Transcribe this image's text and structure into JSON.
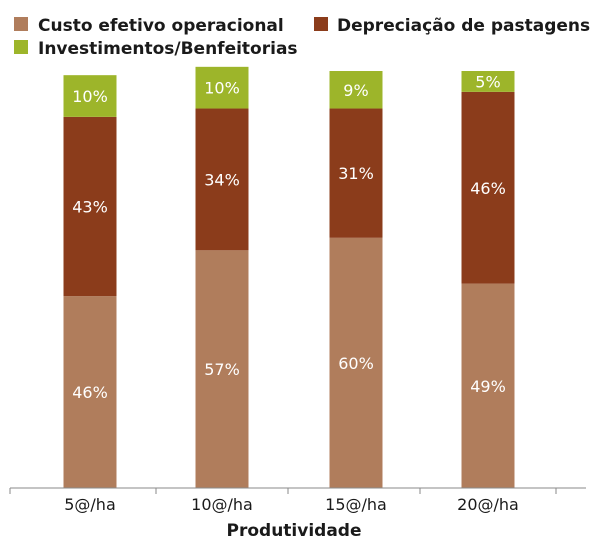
{
  "chart_data": {
    "type": "bar",
    "stacked": true,
    "percent": true,
    "title": "",
    "xlabel": "Produtividade",
    "ylabel": "",
    "ylim": [
      0,
      100
    ],
    "grid": false,
    "legend_position": "top",
    "categories": [
      "5@/ha",
      "10@/ha",
      "15@/ha",
      "20@/ha"
    ],
    "series": [
      {
        "name": "Custo efetivo operacional",
        "color": "#B07D5C",
        "values": [
          46,
          57,
          60,
          49
        ],
        "labels": [
          "46%",
          "57%",
          "60%",
          "49%"
        ]
      },
      {
        "name": "Depreciação de pastagens",
        "color": "#8B3C1B",
        "values": [
          43,
          34,
          31,
          46
        ],
        "labels": [
          "43%",
          "34%",
          "31%",
          "46%"
        ]
      },
      {
        "name": "Investimentos/Benfeitorias",
        "color": "#9DB52A",
        "values": [
          10,
          10,
          9,
          5
        ],
        "labels": [
          "10%",
          "10%",
          "9%",
          "5%"
        ]
      }
    ]
  }
}
